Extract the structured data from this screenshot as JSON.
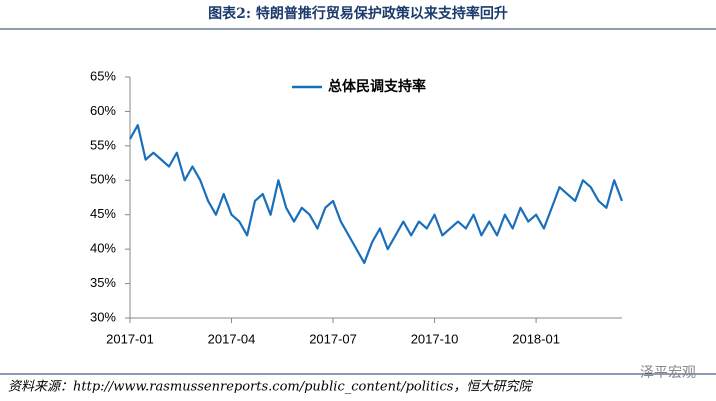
{
  "chart_data": {
    "type": "line",
    "title": "图表2: 特朗普推行贸易保护政策以来支持率回升",
    "source": "资料来源：http://www.rasmussenreports.com/public_content/politics，恒大研究院",
    "watermark": "泽平宏观",
    "categories": [
      "2017-01",
      null,
      null,
      null,
      null,
      null,
      null,
      null,
      null,
      null,
      null,
      null,
      null,
      "2017-04",
      null,
      null,
      null,
      null,
      null,
      null,
      null,
      null,
      null,
      null,
      null,
      null,
      "2017-07",
      null,
      null,
      null,
      null,
      null,
      null,
      null,
      null,
      null,
      null,
      null,
      null,
      "2017-10",
      null,
      null,
      null,
      null,
      null,
      null,
      null,
      null,
      null,
      null,
      null,
      null,
      "2018-01",
      null,
      null,
      null,
      null,
      null,
      null,
      null,
      null,
      null,
      null,
      null
    ],
    "series": [
      {
        "name": "总体民调支持率",
        "color": "#1a6fba",
        "values": [
          56,
          58,
          53,
          54,
          53,
          52,
          54,
          50,
          52,
          50,
          47,
          45,
          48,
          45,
          44,
          42,
          47,
          48,
          45,
          50,
          46,
          44,
          46,
          45,
          43,
          46,
          47,
          44,
          42,
          40,
          38,
          41,
          43,
          40,
          42,
          44,
          42,
          44,
          43,
          45,
          42,
          43,
          44,
          43,
          45,
          42,
          44,
          42,
          45,
          43,
          46,
          44,
          45,
          43,
          46,
          49,
          48,
          47,
          50,
          49,
          47,
          46,
          50,
          47
        ]
      }
    ],
    "ylim": [
      30,
      65
    ],
    "yticks": [
      {
        "value": 30,
        "label": "30%"
      },
      {
        "value": 35,
        "label": "35%"
      },
      {
        "value": 40,
        "label": "40%"
      },
      {
        "value": 45,
        "label": "45%"
      },
      {
        "value": 50,
        "label": "50%"
      },
      {
        "value": 55,
        "label": "55%"
      },
      {
        "value": 60,
        "label": "60%"
      },
      {
        "value": 65,
        "label": "65%"
      }
    ],
    "legend": "top-left"
  }
}
